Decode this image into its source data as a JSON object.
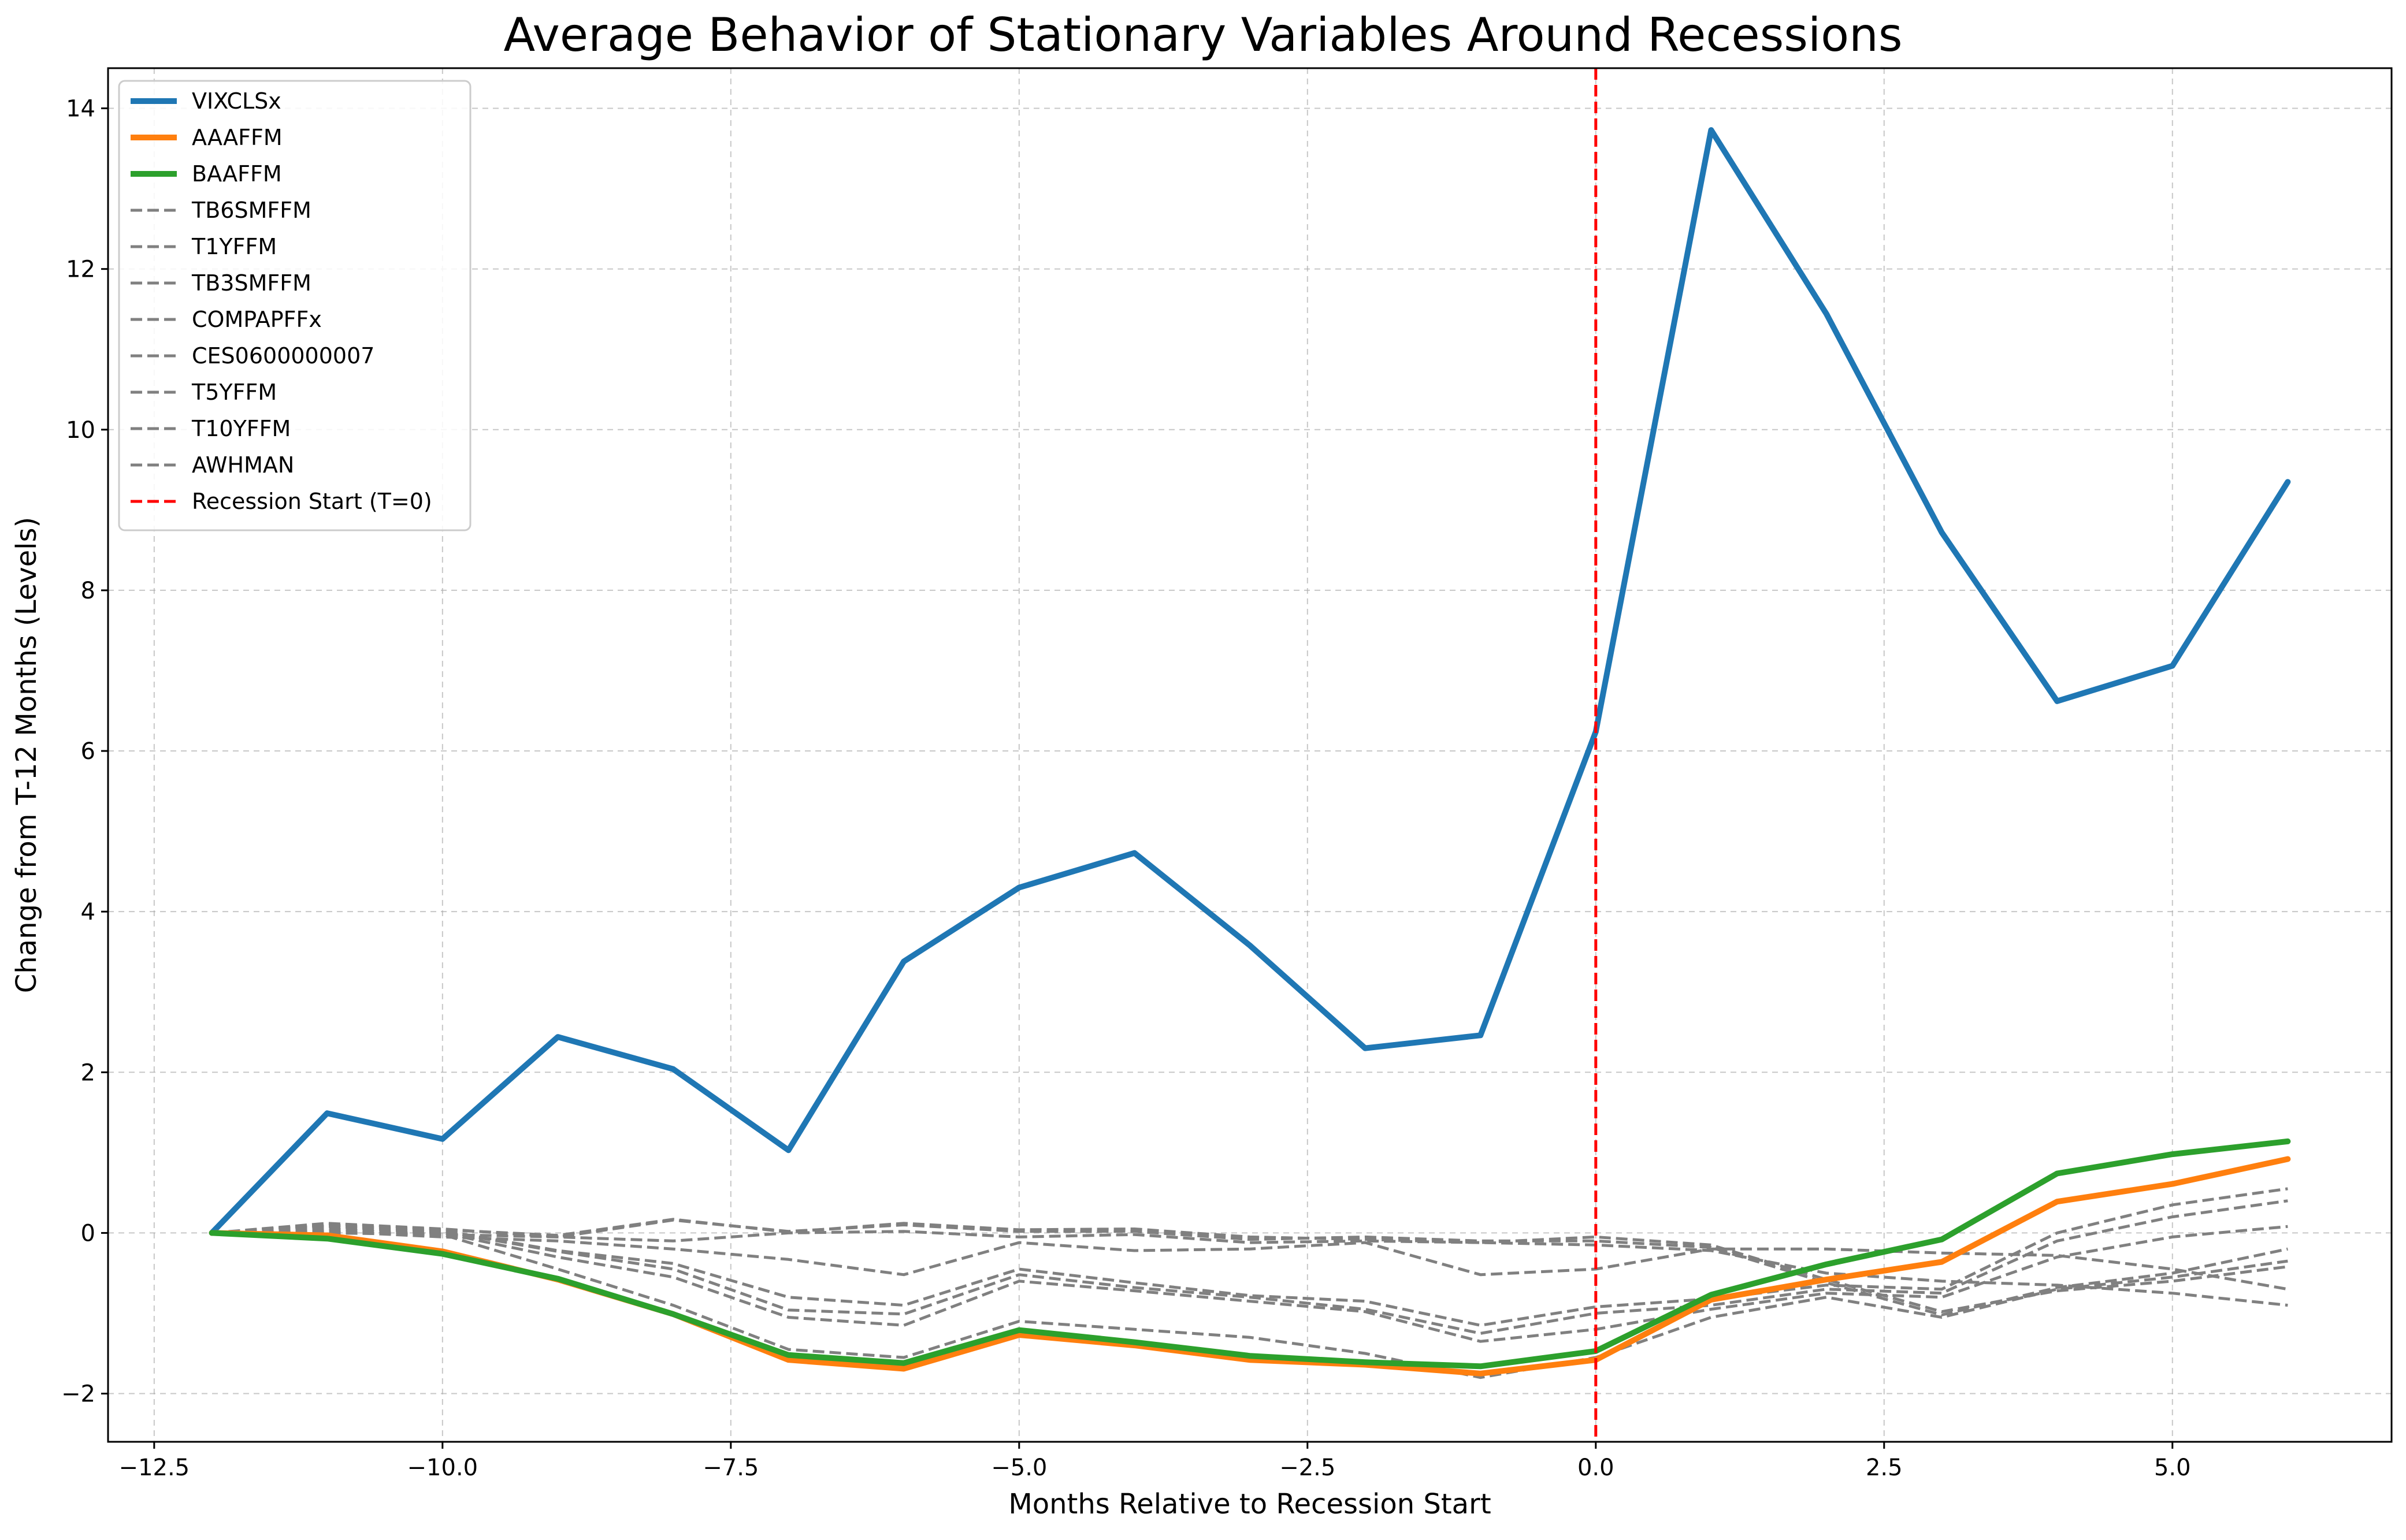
{
  "chart_data": {
    "type": "line",
    "title": "Average Behavior of Stationary Variables Around Recessions",
    "xlabel": "Months Relative to Recession Start",
    "ylabel": "Change from T-12 Months (Levels)",
    "xlim": [
      -12.9,
      6.9
    ],
    "ylim": [
      -2.6,
      14.5
    ],
    "x_ticks": [
      -12.5,
      -10.0,
      -7.5,
      -5.0,
      -2.5,
      0.0,
      2.5,
      5.0
    ],
    "x_tick_labels": [
      "−12.5",
      "−10.0",
      "−7.5",
      "−5.0",
      "−2.5",
      "0.0",
      "2.5",
      "5.0"
    ],
    "y_ticks": [
      -2,
      0,
      2,
      4,
      6,
      8,
      10,
      12,
      14
    ],
    "y_tick_labels": [
      "−2",
      "0",
      "2",
      "4",
      "6",
      "8",
      "10",
      "12",
      "14"
    ],
    "grid": true,
    "legend_position": "top-left",
    "x": [
      -12,
      -11,
      -10,
      -9,
      -8,
      -7,
      -6,
      -5,
      -4,
      -3,
      -2,
      -1,
      0,
      1,
      2,
      3,
      4,
      5,
      6
    ],
    "series": [
      {
        "name": "VIXCLSx",
        "color": "#1f77b4",
        "style": "solid",
        "values": [
          0,
          1.49,
          1.17,
          2.44,
          2.04,
          1.03,
          3.38,
          4.3,
          4.73,
          3.58,
          2.3,
          2.46,
          6.24,
          13.73,
          11.44,
          8.72,
          6.62,
          7.06,
          9.35
        ]
      },
      {
        "name": "AAAFFM",
        "color": "#ff7f0e",
        "style": "solid",
        "values": [
          0,
          -0.03,
          -0.23,
          -0.58,
          -1.01,
          -1.58,
          -1.69,
          -1.27,
          -1.4,
          -1.58,
          -1.64,
          -1.75,
          -1.58,
          -0.83,
          -0.58,
          -0.36,
          0.39,
          0.61,
          0.92
        ]
      },
      {
        "name": "BAAFFM",
        "color": "#2ca02c",
        "style": "solid",
        "values": [
          0,
          -0.07,
          -0.26,
          -0.57,
          -1.01,
          -1.52,
          -1.62,
          -1.21,
          -1.36,
          -1.53,
          -1.61,
          -1.66,
          -1.47,
          -0.77,
          -0.39,
          -0.08,
          0.74,
          0.98,
          1.14
        ]
      },
      {
        "name": "TB6SMFFM",
        "color": "#808080",
        "style": "dashed",
        "values": [
          0,
          0.09,
          0.02,
          -0.23,
          -0.45,
          -0.96,
          -1.01,
          -0.52,
          -0.68,
          -0.8,
          -0.95,
          -1.25,
          -1.0,
          -0.9,
          -0.7,
          -0.75,
          -0.1,
          0.2,
          0.4
        ]
      },
      {
        "name": "T1YFFM",
        "color": "#808080",
        "style": "dashed",
        "values": [
          0,
          0.1,
          0.03,
          -0.22,
          -0.38,
          -0.8,
          -0.9,
          -0.45,
          -0.62,
          -0.78,
          -0.85,
          -1.15,
          -0.92,
          -0.82,
          -0.65,
          -0.7,
          0.0,
          0.35,
          0.55
        ]
      },
      {
        "name": "TB3SMFFM",
        "color": "#808080",
        "style": "dashed",
        "values": [
          0,
          0.08,
          0.0,
          -0.3,
          -0.55,
          -1.05,
          -1.15,
          -0.6,
          -0.72,
          -0.85,
          -0.98,
          -1.35,
          -1.2,
          -0.95,
          -0.75,
          -0.8,
          -0.3,
          -0.05,
          0.08
        ]
      },
      {
        "name": "COMPAPFFx",
        "color": "#808080",
        "style": "dashed",
        "values": [
          0,
          0.05,
          -0.02,
          -0.45,
          -0.9,
          -1.45,
          -1.55,
          -1.1,
          -1.2,
          -1.3,
          -1.5,
          -1.8,
          -1.55,
          -1.05,
          -0.8,
          -1.05,
          -0.7,
          -0.55,
          -0.35
        ]
      },
      {
        "name": "CES0600000007",
        "color": "#808080",
        "style": "dashed",
        "values": [
          0,
          0.02,
          -0.05,
          -0.1,
          -0.2,
          -0.33,
          -0.52,
          -0.12,
          -0.22,
          -0.2,
          -0.12,
          -0.52,
          -0.45,
          -0.2,
          -0.2,
          -0.25,
          -0.28,
          -0.45,
          -0.7
        ]
      },
      {
        "name": "T5YFFM",
        "color": "#808080",
        "style": "dashed",
        "values": [
          0,
          0.12,
          0.05,
          -0.05,
          0.16,
          0.02,
          0.1,
          0.02,
          0.02,
          -0.08,
          -0.05,
          -0.1,
          -0.1,
          -0.18,
          -0.62,
          -1.02,
          -0.68,
          -0.5,
          -0.2
        ]
      },
      {
        "name": "T10YFFM",
        "color": "#808080",
        "style": "dashed",
        "values": [
          0,
          0.1,
          0.04,
          -0.03,
          0.17,
          0.01,
          0.12,
          0.04,
          0.05,
          -0.05,
          -0.08,
          -0.12,
          -0.05,
          -0.15,
          -0.58,
          -0.98,
          -0.72,
          -0.6,
          -0.42
        ]
      },
      {
        "name": "AWHMAN",
        "color": "#808080",
        "style": "dashed",
        "values": [
          0,
          0.0,
          -0.02,
          -0.05,
          -0.1,
          0.0,
          0.02,
          -0.05,
          -0.02,
          -0.12,
          -0.1,
          -0.12,
          -0.15,
          -0.22,
          -0.5,
          -0.6,
          -0.65,
          -0.75,
          -0.9
        ]
      }
    ],
    "vline": {
      "x": 0,
      "name": "Recession Start (T=0)",
      "color": "#ff0000",
      "style": "dashed"
    }
  }
}
